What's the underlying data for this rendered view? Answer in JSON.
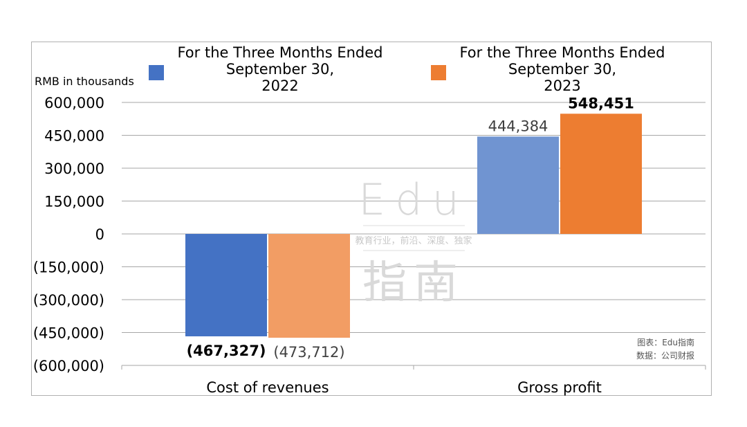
{
  "chart_data": {
    "type": "bar",
    "unit_label": "RMB in thousands",
    "categories": [
      "Cost of revenues",
      "Gross profit"
    ],
    "series": [
      {
        "name": "For the Three Months Ended September 30, 2022",
        "name_lines": [
          "For the Three Months Ended",
          "September 30,",
          "2022"
        ],
        "values": [
          -467327,
          444384
        ],
        "colors": [
          "#4472c4",
          "#7094d1"
        ],
        "data_labels": [
          "(467,327)",
          "444,384"
        ]
      },
      {
        "name": "For the Three Months Ended September 30, 2023",
        "name_lines": [
          "For the Three Months Ended",
          "September 30,",
          "2023"
        ],
        "values": [
          -473712,
          548451
        ],
        "colors": [
          "#f29d64",
          "#ed7d31"
        ],
        "data_labels": [
          "(473,712)",
          "548,451"
        ]
      }
    ],
    "ylim": [
      -600000,
      600000
    ],
    "yticks": [
      600000,
      450000,
      300000,
      150000,
      0,
      -150000,
      -300000,
      -450000,
      -600000
    ],
    "ytick_labels": [
      "600,000",
      "450,000",
      "300,000",
      "150,000",
      "0",
      "(150,000)",
      "(300,000)",
      "(450,000)",
      "(600,000)"
    ],
    "grid": true,
    "legend_position": "top"
  },
  "watermark": {
    "line1": "Edu",
    "tagline": "教育行业，前沿、深度、独家",
    "line2": "指南"
  },
  "source_note": {
    "chart_credit": "图表：Edu指南",
    "data_source": "数据：公司财报"
  }
}
